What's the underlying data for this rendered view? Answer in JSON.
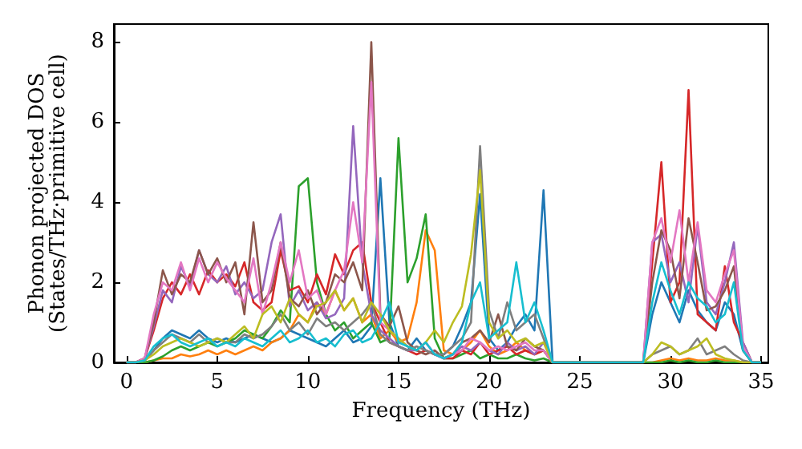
{
  "chart_data": {
    "type": "line",
    "xlabel": "Frequency (THz)",
    "ylabel": "Phonon projected DOS\n(States/THz·primitive cell)",
    "xlim": [
      -0.7,
      35.4
    ],
    "ylim": [
      0,
      8.45
    ],
    "xticks": [
      0,
      5,
      10,
      15,
      20,
      25,
      30,
      35
    ],
    "yticks": [
      0,
      2,
      4,
      6,
      8
    ],
    "marker": "none",
    "line_style": "solid",
    "x": [
      0,
      0.5,
      1,
      1.5,
      2,
      2.5,
      3,
      3.5,
      4,
      4.5,
      5,
      5.5,
      6,
      6.5,
      7,
      7.5,
      8,
      8.5,
      9,
      9.5,
      10,
      10.5,
      11,
      11.5,
      12,
      12.5,
      13,
      13.5,
      14,
      14.5,
      15,
      15.5,
      16,
      16.5,
      17,
      17.5,
      18,
      18.5,
      19,
      19.5,
      20,
      20.5,
      21,
      21.5,
      22,
      22.5,
      23,
      23.5,
      24,
      24.5,
      25,
      25.5,
      26,
      26.5,
      27,
      27.5,
      28,
      28.5,
      29,
      29.5,
      30,
      30.5,
      31,
      31.5,
      32,
      32.5,
      33,
      33.5,
      34,
      34.5,
      35
    ],
    "series": [
      {
        "color": "#1f77b4",
        "values": [
          0,
          0,
          0.05,
          0.3,
          0.6,
          0.8,
          0.7,
          0.6,
          0.8,
          0.6,
          0.5,
          0.6,
          0.5,
          0.6,
          0.7,
          0.6,
          0.5,
          0.6,
          0.8,
          0.7,
          0.6,
          0.5,
          0.4,
          0.6,
          0.8,
          0.5,
          0.6,
          0.9,
          4.6,
          1.0,
          0.4,
          0.3,
          0.6,
          0.3,
          0.2,
          0.2,
          0.4,
          0.9,
          1.5,
          4.2,
          0.6,
          0.3,
          0.5,
          0.9,
          1.2,
          0.8,
          4.3,
          0,
          0,
          0,
          0,
          0,
          0,
          0,
          0,
          0,
          0,
          0,
          1.2,
          2.0,
          1.5,
          1.0,
          1.8,
          1.3,
          1.0,
          0.8,
          1.5,
          1.2,
          0.3,
          0,
          0
        ]
      },
      {
        "color": "#ff7f0e",
        "values": [
          null,
          null,
          0,
          0.05,
          0.1,
          0.1,
          0.2,
          0.15,
          0.2,
          0.3,
          0.2,
          0.3,
          0.2,
          0.3,
          0.4,
          0.3,
          0.5,
          0.6,
          0.8,
          1.2,
          1.0,
          1.5,
          1.2,
          1.8,
          1.3,
          1.6,
          1.0,
          1.2,
          0.6,
          0.8,
          0.5,
          0.6,
          1.5,
          3.3,
          2.8,
          0.3,
          0.2,
          0.3,
          0.5,
          0.8,
          0.4,
          0.2,
          0.3,
          0.5,
          0.3,
          0.2,
          0.3,
          0,
          0,
          0,
          0,
          0,
          0,
          0,
          0,
          0,
          0,
          0,
          0,
          0.05,
          0.1,
          0.05,
          0.1,
          0.05,
          0.05,
          0.1,
          0.05,
          0.05,
          0,
          0,
          0
        ]
      },
      {
        "color": "#2ca02c",
        "values": [
          0,
          0,
          0,
          0.05,
          0.15,
          0.3,
          0.4,
          0.3,
          0.4,
          0.5,
          0.4,
          0.5,
          0.6,
          0.8,
          0.7,
          0.6,
          0.9,
          1.3,
          1.0,
          4.4,
          4.6,
          2.0,
          1.2,
          0.8,
          1.0,
          0.6,
          0.8,
          1.0,
          0.5,
          0.6,
          5.6,
          2.0,
          2.6,
          3.7,
          0.6,
          0.1,
          0.1,
          0.2,
          0.3,
          0.1,
          0.2,
          0.1,
          0.1,
          0.2,
          0.1,
          0.05,
          0.1,
          0,
          0,
          0,
          0,
          0,
          0,
          0,
          0,
          0,
          0,
          0,
          0,
          0,
          0.05,
          0,
          0.05,
          0,
          0,
          0.05,
          0,
          0,
          0,
          0,
          0
        ]
      },
      {
        "color": "#d62728",
        "values": [
          0,
          0,
          0.1,
          0.8,
          1.6,
          2.0,
          1.7,
          2.2,
          1.7,
          2.3,
          2.0,
          2.2,
          1.9,
          2.5,
          1.5,
          1.3,
          1.5,
          2.8,
          1.8,
          1.9,
          1.5,
          2.2,
          1.7,
          2.7,
          2.2,
          2.8,
          3.0,
          1.5,
          1.0,
          0.5,
          0.4,
          0.3,
          0.2,
          0.3,
          0.2,
          0.1,
          0.1,
          0.3,
          0.2,
          0.5,
          0.2,
          0.3,
          0.4,
          0.2,
          0.3,
          0.2,
          0.3,
          0,
          0,
          0,
          0,
          0,
          0,
          0,
          0,
          0,
          0,
          0,
          2.5,
          5.0,
          1.5,
          2.0,
          6.8,
          1.2,
          1.0,
          0.8,
          2.4,
          1.0,
          0.5,
          0,
          0
        ]
      },
      {
        "color": "#9467bd",
        "values": [
          0,
          0,
          0.1,
          0.9,
          1.8,
          1.5,
          2.4,
          1.9,
          2.8,
          2.2,
          2.0,
          2.4,
          1.7,
          2.0,
          1.6,
          1.8,
          3.0,
          3.7,
          1.4,
          1.8,
          1.3,
          1.5,
          1.1,
          1.2,
          1.6,
          5.9,
          2.5,
          1.2,
          0.8,
          0.6,
          0.4,
          0.3,
          0.3,
          0.5,
          0.2,
          0.1,
          0.2,
          0.4,
          0.3,
          0.5,
          0.3,
          0.2,
          0.5,
          0.3,
          0.4,
          0.2,
          0.5,
          0,
          0,
          0,
          0,
          0,
          0,
          0,
          0,
          0,
          0,
          0,
          3.0,
          3.2,
          2.0,
          2.5,
          1.5,
          3.4,
          1.5,
          1.2,
          2.0,
          3.0,
          0.5,
          0,
          0
        ]
      },
      {
        "color": "#8c564b",
        "values": [
          0,
          0,
          0.1,
          1.0,
          2.3,
          1.7,
          2.2,
          2.0,
          2.8,
          2.2,
          2.6,
          2.0,
          2.5,
          1.2,
          3.5,
          1.5,
          1.8,
          3.0,
          1.6,
          1.4,
          1.8,
          1.2,
          1.5,
          2.2,
          2.0,
          2.5,
          1.8,
          8.0,
          1.2,
          0.9,
          1.4,
          0.5,
          0.3,
          0.2,
          0.3,
          0.1,
          0.2,
          0.5,
          0.6,
          0.8,
          0.5,
          1.2,
          0.4,
          0.3,
          0.6,
          0.4,
          0.3,
          0,
          0,
          0,
          0,
          0,
          0,
          0,
          0,
          0,
          0,
          0,
          2.0,
          3.3,
          2.8,
          1.6,
          3.6,
          2.5,
          1.3,
          1.4,
          1.8,
          2.4,
          0.3,
          0,
          0
        ]
      },
      {
        "color": "#e377c2",
        "values": [
          0,
          0,
          0.1,
          1.2,
          2.0,
          1.8,
          2.5,
          1.8,
          2.6,
          2.0,
          2.5,
          2.1,
          1.8,
          1.5,
          2.6,
          1.2,
          2.0,
          3.0,
          2.0,
          2.8,
          1.6,
          1.8,
          1.2,
          1.8,
          2.3,
          4.0,
          2.5,
          7.0,
          1.0,
          0.8,
          0.6,
          0.4,
          0.3,
          0.5,
          0.2,
          0.1,
          0.2,
          0.3,
          0.6,
          0.5,
          0.3,
          0.4,
          0.3,
          0.4,
          0.5,
          0.3,
          0.3,
          0,
          0,
          0,
          0,
          0,
          0,
          0,
          0,
          0,
          0,
          0,
          3.0,
          3.6,
          2.5,
          3.8,
          2.0,
          3.5,
          1.8,
          1.5,
          2.2,
          2.8,
          0.4,
          0,
          0
        ]
      },
      {
        "color": "#7f7f7f",
        "values": [
          0,
          0,
          0.05,
          0.3,
          0.5,
          0.7,
          0.6,
          0.5,
          0.7,
          0.5,
          0.6,
          0.5,
          0.5,
          0.7,
          0.6,
          0.7,
          0.9,
          1.2,
          0.8,
          1.0,
          0.7,
          1.1,
          0.9,
          1.0,
          0.8,
          1.0,
          1.2,
          1.5,
          0.7,
          0.5,
          0.4,
          0.3,
          0.4,
          0.3,
          0.2,
          0.2,
          0.4,
          0.6,
          1.0,
          5.4,
          1.3,
          0.6,
          1.5,
          0.8,
          1.0,
          1.2,
          0.6,
          0,
          0,
          0,
          0,
          0,
          0,
          0,
          0,
          0,
          0,
          0,
          0.2,
          0.3,
          0.4,
          0.2,
          0.3,
          0.6,
          0.2,
          0.3,
          0.4,
          0.2,
          0.05,
          0,
          0
        ]
      },
      {
        "color": "#bcbd22",
        "values": [
          0,
          0,
          0.05,
          0.2,
          0.4,
          0.5,
          0.6,
          0.5,
          0.4,
          0.5,
          0.6,
          0.5,
          0.7,
          0.9,
          0.6,
          1.2,
          1.4,
          1.0,
          1.6,
          1.2,
          1.0,
          1.4,
          1.5,
          1.8,
          1.3,
          1.6,
          1.0,
          1.5,
          1.2,
          0.8,
          0.6,
          0.4,
          0.3,
          0.5,
          0.8,
          0.5,
          1.0,
          1.4,
          2.7,
          4.8,
          1.0,
          0.6,
          0.8,
          0.5,
          0.6,
          0.4,
          0.5,
          0,
          0,
          0,
          0,
          0,
          0,
          0,
          0,
          0,
          0,
          0,
          0.2,
          0.5,
          0.4,
          0.2,
          0.3,
          0.4,
          0.6,
          0.2,
          0.1,
          0.05,
          0,
          0,
          0
        ]
      },
      {
        "color": "#17becf",
        "values": [
          0,
          0,
          0.05,
          0.4,
          0.6,
          0.7,
          0.5,
          0.4,
          0.5,
          0.6,
          0.4,
          0.5,
          0.4,
          0.6,
          0.5,
          0.4,
          0.6,
          0.8,
          0.5,
          0.6,
          0.8,
          0.5,
          0.6,
          0.4,
          0.7,
          0.8,
          0.5,
          0.6,
          1.0,
          1.5,
          0.5,
          0.4,
          0.3,
          0.5,
          0.2,
          0.1,
          0.2,
          0.5,
          1.5,
          2.0,
          0.6,
          0.8,
          1.0,
          2.5,
          1.0,
          1.5,
          0.8,
          0,
          0,
          0,
          0,
          0,
          0,
          0,
          0,
          0,
          0,
          0,
          1.5,
          2.5,
          1.8,
          1.2,
          2.0,
          1.6,
          1.4,
          1.0,
          1.2,
          2.0,
          0.3,
          0,
          0
        ]
      }
    ]
  }
}
